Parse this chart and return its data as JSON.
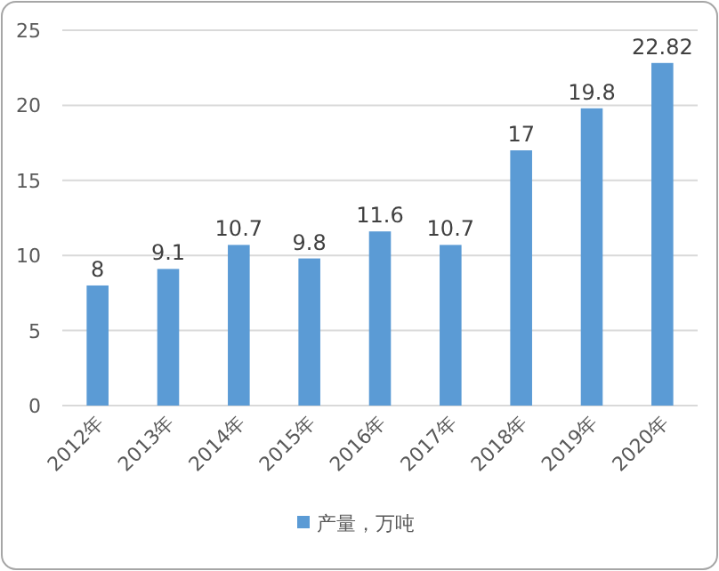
{
  "chart_data": {
    "type": "bar",
    "categories": [
      "2012年",
      "2013年",
      "2014年",
      "2015年",
      "2016年",
      "2017年",
      "2018年",
      "2019年",
      "2020年"
    ],
    "series": [
      {
        "name": "产量，万吨",
        "color": "#5b9bd5",
        "values": [
          8,
          9.1,
          10.7,
          9.8,
          11.6,
          10.7,
          17,
          19.8,
          22.82
        ]
      }
    ],
    "ylim": [
      0,
      25
    ],
    "yticks": [
      0,
      5,
      10,
      15,
      20,
      25
    ],
    "grid": "y",
    "legend": "bottom",
    "data_labels": true
  }
}
